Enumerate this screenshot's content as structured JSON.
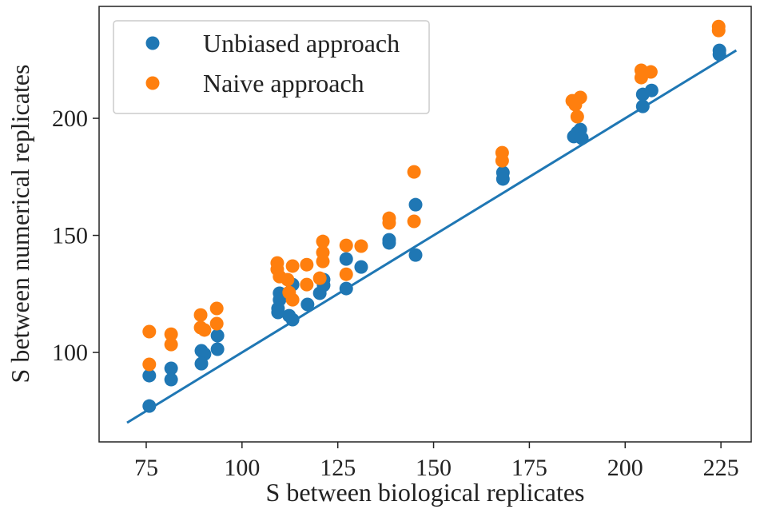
{
  "chart_data": {
    "type": "scatter",
    "xlabel": "S between biological replicates",
    "ylabel": "S between numerical replicates",
    "xlim": [
      62.7,
      232.9
    ],
    "ylim": [
      61.8,
      247.8
    ],
    "xticks": [
      75,
      100,
      125,
      150,
      175,
      200,
      225
    ],
    "yticks": [
      100,
      150,
      200
    ],
    "legend": "upper left",
    "series": [
      {
        "name": "Unbiased approach",
        "color": "#1f77b4",
        "x": [
          75.8,
          75.8,
          81.5,
          81.5,
          89.4,
          90.2,
          89.4,
          93.6,
          93.6,
          109.8,
          109.8,
          109.4,
          109.4,
          112.3,
          113.2,
          113.2,
          117.1,
          120.3,
          121.3,
          121.3,
          127.2,
          127.2,
          131.1,
          138.4,
          138.4,
          145.3,
          145.3,
          168.1,
          168.1,
          186.6,
          187.5,
          188.3,
          188.7,
          204.6,
          204.6,
          206.9,
          224.6,
          224.6
        ],
        "y": [
          77.1,
          90.1,
          93.2,
          88.4,
          100.7,
          99.3,
          95.2,
          107.2,
          101.4,
          125.3,
          122.5,
          118.8,
          117.1,
          115.7,
          114.0,
          129.0,
          120.5,
          125.3,
          131.1,
          128.7,
          139.9,
          127.3,
          136.5,
          148.1,
          146.8,
          163.1,
          141.6,
          176.8,
          174.1,
          192.2,
          193.9,
          195.2,
          191.5,
          210.2,
          205.1,
          211.9,
          229.0,
          227.3
        ]
      },
      {
        "name": "Naive approach",
        "color": "#ff7f0e",
        "x": [
          75.8,
          75.8,
          81.5,
          81.5,
          89.2,
          89.2,
          90.2,
          93.4,
          93.4,
          109.2,
          109.2,
          109.8,
          111.9,
          113.2,
          112.3,
          113.2,
          116.9,
          116.9,
          120.3,
          121.1,
          121.1,
          121.1,
          127.2,
          127.2,
          131.1,
          138.4,
          138.4,
          144.9,
          144.9,
          167.9,
          167.9,
          186.2,
          187.0,
          188.3,
          187.5,
          204.2,
          204.2,
          206.7,
          224.4,
          224.4
        ],
        "y": [
          108.9,
          94.9,
          107.8,
          103.4,
          116.0,
          110.6,
          109.6,
          118.8,
          112.3,
          138.2,
          135.5,
          132.4,
          131.1,
          136.9,
          125.6,
          122.5,
          137.5,
          129.0,
          131.7,
          147.4,
          142.7,
          138.9,
          145.7,
          133.4,
          145.4,
          157.3,
          155.3,
          177.1,
          156.0,
          185.3,
          181.9,
          207.5,
          205.8,
          208.9,
          200.7,
          220.5,
          217.4,
          219.8,
          239.2,
          237.5
        ]
      }
    ],
    "reference_line": {
      "x": [
        70,
        229
      ],
      "y": [
        70,
        229
      ],
      "color": "#1f77b4"
    }
  }
}
